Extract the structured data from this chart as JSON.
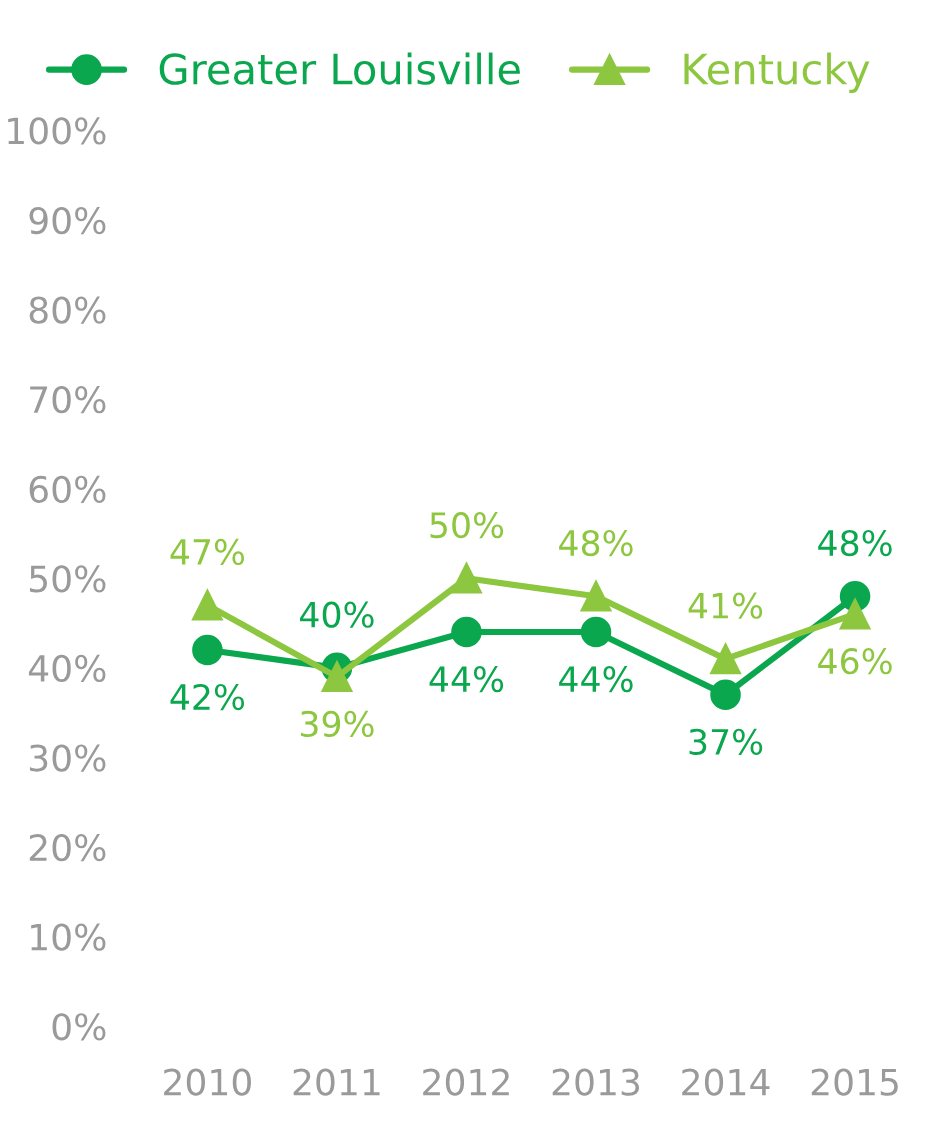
{
  "chart_data": {
    "type": "line",
    "categories": [
      "2010",
      "2011",
      "2012",
      "2013",
      "2014",
      "2015"
    ],
    "series": [
      {
        "name": "Greater Louisville",
        "color": "#0aa74f",
        "marker": "circle",
        "values": [
          42,
          40,
          44,
          44,
          37,
          48
        ],
        "value_labels": [
          "42%",
          "40%",
          "44%",
          "44%",
          "37%",
          "48%"
        ]
      },
      {
        "name": "Kentucky",
        "color": "#8dc63f",
        "marker": "triangle",
        "values": [
          47,
          39,
          50,
          48,
          41,
          46
        ],
        "value_labels": [
          "47%",
          "39%",
          "50%",
          "48%",
          "41%",
          "46%"
        ]
      }
    ],
    "ylim": [
      0,
      100
    ],
    "yticks": [
      {
        "value": 0,
        "label": "0%"
      },
      {
        "value": 10,
        "label": "10%"
      },
      {
        "value": 20,
        "label": "20%"
      },
      {
        "value": 30,
        "label": "30%"
      },
      {
        "value": 40,
        "label": "40%"
      },
      {
        "value": 50,
        "label": "50%"
      },
      {
        "value": 60,
        "label": "60%"
      },
      {
        "value": 70,
        "label": "70%"
      },
      {
        "value": 80,
        "label": "80%"
      },
      {
        "value": 90,
        "label": "90%"
      },
      {
        "value": 100,
        "label": "100%"
      }
    ],
    "grid": false,
    "legend": "top left",
    "line_style": "solid"
  }
}
